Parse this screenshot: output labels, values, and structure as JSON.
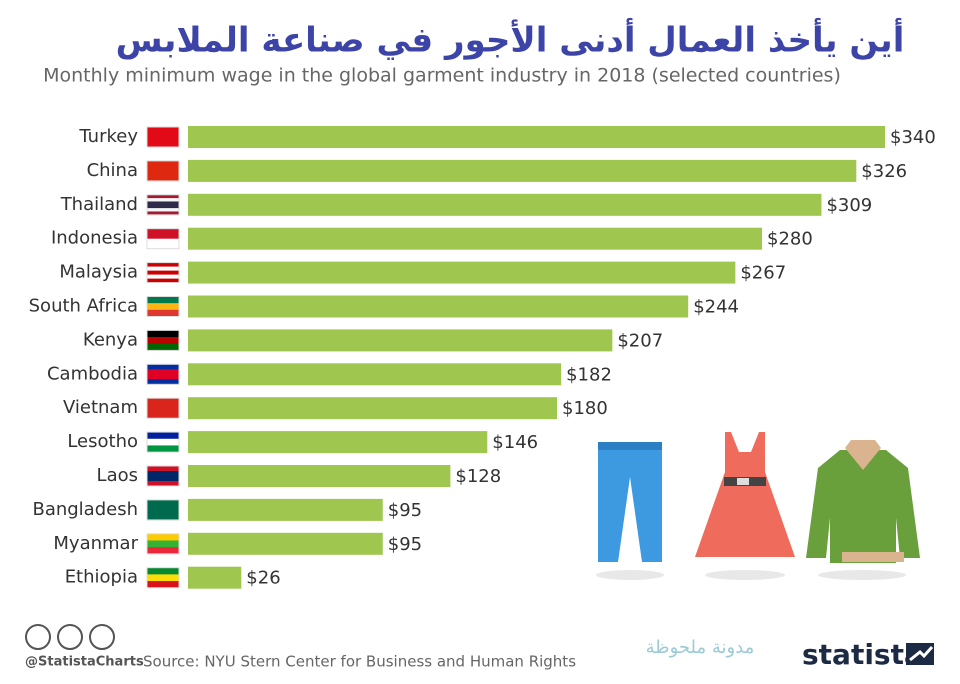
{
  "title": "أين يأخذ العمال أدنى الأجور في صناعة الملابس",
  "chart_data": {
    "type": "bar",
    "orientation": "horizontal",
    "subtitle": "Monthly minimum wage in the global garment industry in 2018 (selected countries)",
    "categories": [
      "Turkey",
      "China",
      "Thailand",
      "Indonesia",
      "Malaysia",
      "South Africa",
      "Kenya",
      "Cambodia",
      "Vietnam",
      "Lesotho",
      "Laos",
      "Bangladesh",
      "Myanmar",
      "Ethiopia"
    ],
    "values": [
      340,
      326,
      309,
      280,
      267,
      244,
      207,
      182,
      180,
      146,
      128,
      95,
      95,
      26
    ],
    "value_labels": [
      "$340",
      "$326",
      "$309",
      "$280",
      "$267",
      "$244",
      "$207",
      "$182",
      "$180",
      "$146",
      "$128",
      "$95",
      "$95",
      "$26"
    ],
    "color": "#9fc74f"
  },
  "footer": {
    "handle": "@StatistaCharts",
    "source": "Source: NYU Stern Center for Business and Human Rights",
    "watermark": "مدونة ملحوظة",
    "brand": "statista"
  }
}
